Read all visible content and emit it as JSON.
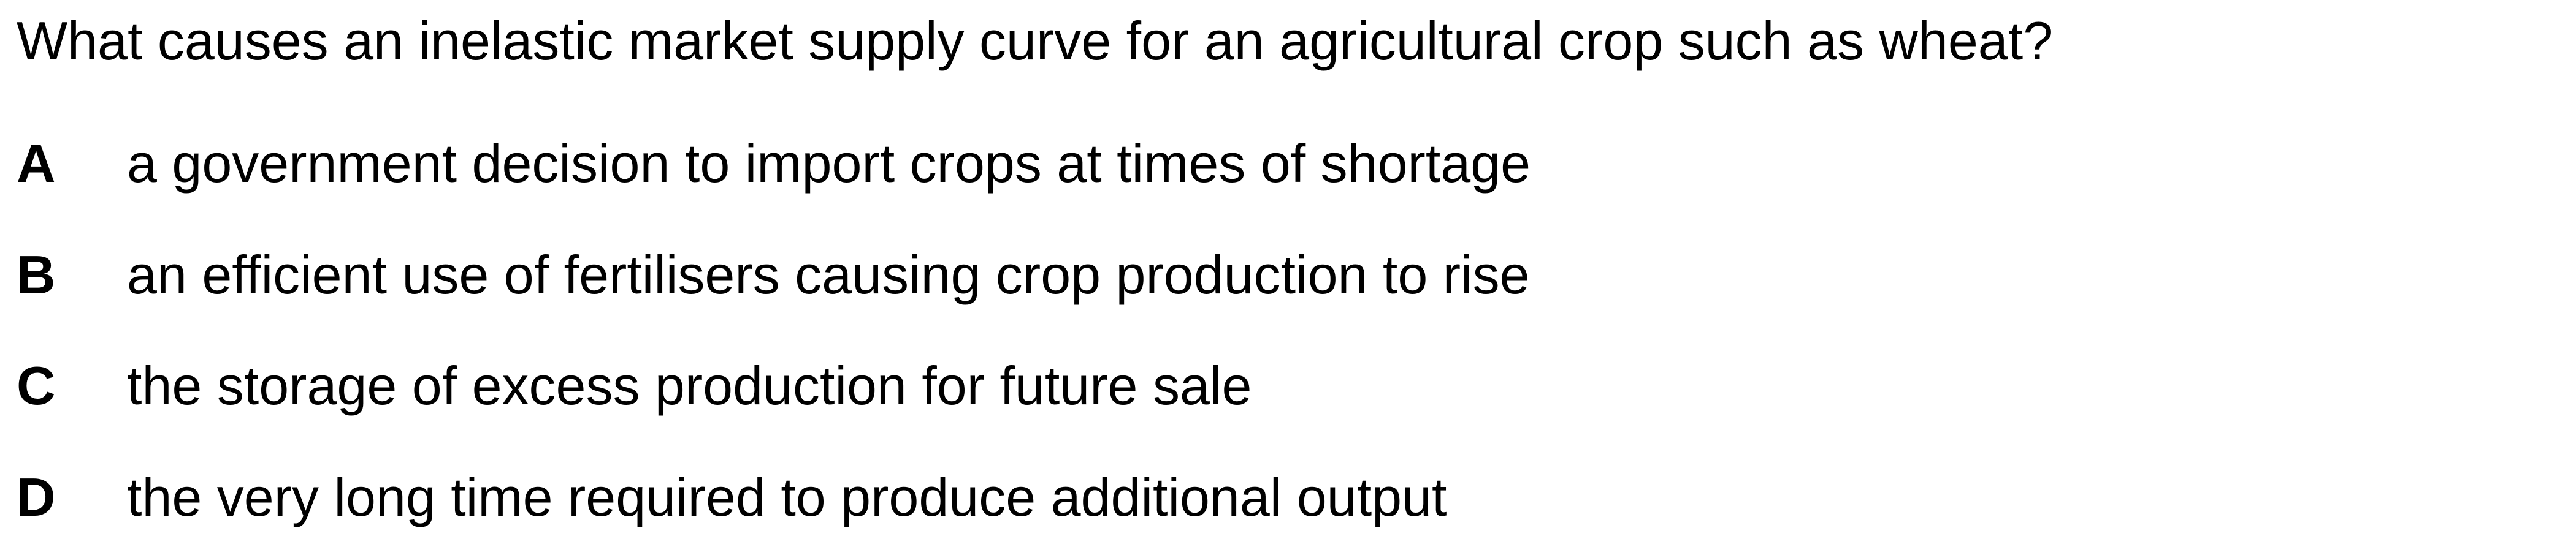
{
  "question": "What causes an inelastic market supply curve for an agricultural crop such as wheat?",
  "options": [
    {
      "letter": "A",
      "text": "a government decision to import crops at times of shortage"
    },
    {
      "letter": "B",
      "text": "an efficient use of fertilisers causing crop production to rise"
    },
    {
      "letter": "C",
      "text": "the storage of excess production for future sale"
    },
    {
      "letter": "D",
      "text": "the very long time required to produce additional output"
    }
  ]
}
